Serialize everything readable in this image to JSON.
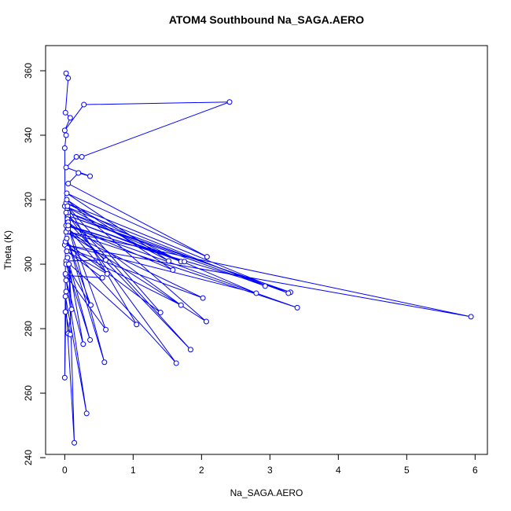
{
  "chart_data": {
    "type": "line",
    "title": "ATOM4 Southbound Na_SAGA.AERO",
    "x_label": "Na_SAGA.AERO",
    "y_label": "Theta (K)",
    "xlim": [
      -0.28,
      6.18
    ],
    "ylim": [
      241,
      367.8
    ],
    "xticks": [
      0,
      1,
      2,
      3,
      4,
      5,
      6
    ],
    "yticks": [
      240,
      260,
      280,
      300,
      320,
      340,
      360
    ],
    "markers": true,
    "grid": false,
    "series": [
      {
        "color": "#0000ff",
        "x": [
          0.02,
          0.05,
          0.01,
          0.08,
          0.0,
          0.28,
          2.41,
          0.25,
          0.17,
          0.02,
          0.37,
          0.2,
          0.05,
          2.08,
          0.03,
          1.52,
          0.0,
          2.93,
          0.05,
          3.3,
          0.02,
          3.4,
          0.05,
          5.94,
          0.0,
          2.8,
          0.05,
          3.27,
          0.02,
          1.7,
          0.04,
          1.75,
          0.06,
          1.58,
          0.03,
          2.07,
          0.02,
          2.02,
          0.04,
          1.7,
          0.05,
          1.84,
          0.02,
          1.63,
          0.01,
          1.4,
          0.04,
          1.05,
          0.02,
          0.6,
          0.05,
          0.62,
          0.03,
          0.55,
          0.02,
          0.6,
          0.05,
          0.58,
          0.03,
          0.38,
          0.02,
          0.37,
          0.04,
          0.27,
          0.02,
          0.32,
          0.01,
          0.14,
          0.06,
          0.1,
          0.05,
          0.08,
          0.01,
          0.02,
          0.0,
          0.01,
          0.0,
          0.02
        ],
        "values": [
          359.2,
          357.7,
          347.0,
          345.4,
          341.5,
          349.5,
          350.3,
          333.3,
          333.3,
          330,
          327.3,
          328.3,
          325,
          302.3,
          322,
          301,
          318,
          293.2,
          315,
          291.3,
          312,
          286.5,
          310,
          283.7,
          306,
          291,
          316,
          291,
          319,
          300.8,
          314,
          300.8,
          312,
          298.2,
          320,
          282.2,
          310,
          289.5,
          305,
          287.3,
          313,
          273.5,
          316,
          269.3,
          307,
          285,
          318,
          281.3,
          301,
          301.3,
          311,
          297,
          304,
          295.8,
          296.5,
          279.7,
          312,
          269.6,
          308,
          287.3,
          300,
          276.5,
          302,
          275.2,
          295,
          253.7,
          290,
          244.6,
          300,
          286,
          278.5,
          278.2,
          285.2,
          291.5,
          264.8,
          297,
          336,
          340
        ]
      }
    ]
  }
}
